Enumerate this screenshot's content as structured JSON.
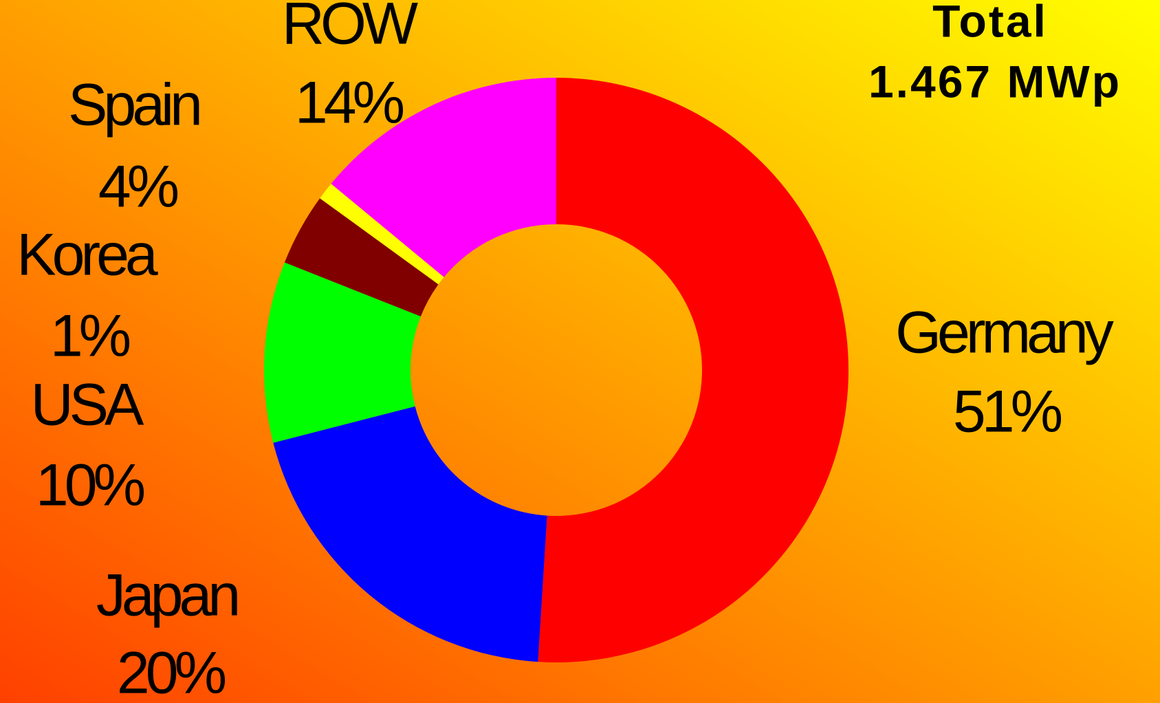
{
  "chart_data": {
    "type": "donut",
    "title": "Total",
    "subtitle": "1.467 MWp",
    "categories": [
      "Germany",
      "Japan",
      "USA",
      "Spain",
      "Korea",
      "ROW"
    ],
    "values": [
      51,
      20,
      10,
      4,
      1,
      14
    ],
    "value_labels": [
      "51%",
      "20%",
      "10%",
      "4%",
      "1%",
      "14%"
    ],
    "colors": [
      "#ff0000",
      "#0000ff",
      "#00ff00",
      "#800000",
      "#ffff00",
      "#ff00ff"
    ]
  }
}
